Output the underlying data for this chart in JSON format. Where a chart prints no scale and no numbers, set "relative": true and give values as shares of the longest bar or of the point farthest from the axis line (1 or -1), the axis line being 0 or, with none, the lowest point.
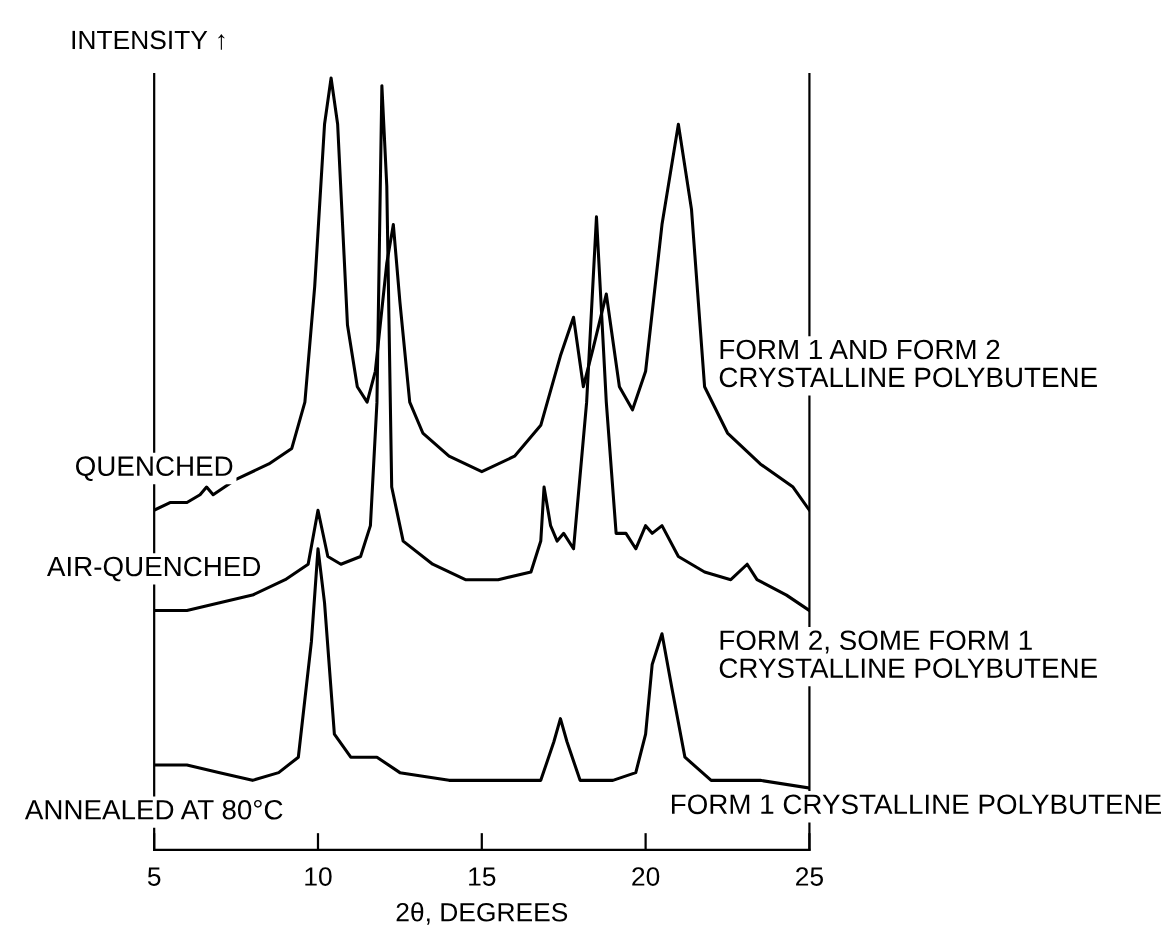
{
  "chart_data": {
    "type": "line",
    "relative": true,
    "xlabel": "2θ, DEGREES",
    "ylabel": "INTENSITY ↑",
    "xlim": [
      5,
      25
    ],
    "xticks": [
      5,
      10,
      15,
      20,
      25
    ],
    "grid": false,
    "legend": false,
    "marker": "none",
    "line_style": "solid",
    "annotations": [
      "FORM 1 AND FORM 2\nCRYSTALLINE POLYBUTENE",
      "FORM 2, SOME FORM 1\nCRYSTALLINE POLYBUTENE",
      "FORM 1 CRYSTALLINE POLYBUTENE"
    ],
    "series": [
      {
        "name": "QUENCHED",
        "color": "#000000",
        "x": [
          5,
          5.5,
          6,
          6.4,
          6.6,
          6.8,
          7.5,
          8.5,
          9.2,
          9.6,
          9.9,
          10.2,
          10.4,
          10.6,
          10.9,
          11.2,
          11.5,
          11.75,
          12.1,
          12.3,
          12.5,
          12.8,
          13.2,
          14,
          15,
          16,
          16.8,
          17.4,
          17.8,
          18.1,
          18.4,
          18.8,
          19.2,
          19.6,
          20.0,
          20.5,
          21.0,
          21.4,
          21.8,
          22.5,
          23.5,
          24.5,
          25
        ],
        "values": [
          0.44,
          0.45,
          0.45,
          0.46,
          0.47,
          0.46,
          0.48,
          0.5,
          0.52,
          0.58,
          0.73,
          0.94,
          1.0,
          0.94,
          0.68,
          0.6,
          0.58,
          0.62,
          0.76,
          0.81,
          0.71,
          0.58,
          0.54,
          0.51,
          0.49,
          0.51,
          0.55,
          0.64,
          0.69,
          0.6,
          0.65,
          0.72,
          0.6,
          0.57,
          0.62,
          0.81,
          0.94,
          0.83,
          0.6,
          0.54,
          0.5,
          0.47,
          0.44
        ]
      },
      {
        "name": "AIR-QUENCHED",
        "color": "#000000",
        "x": [
          5,
          6,
          7,
          8,
          9,
          9.7,
          10.0,
          10.3,
          10.7,
          11.3,
          11.6,
          11.8,
          11.95,
          12.1,
          12.25,
          12.6,
          13.5,
          14.5,
          15.5,
          16.5,
          16.8,
          16.9,
          17.1,
          17.3,
          17.5,
          17.8,
          18.2,
          18.5,
          18.8,
          19.1,
          19.4,
          19.7,
          20.0,
          20.2,
          20.5,
          21.0,
          21.8,
          22.6,
          23.1,
          23.4,
          24.3,
          25
        ],
        "values": [
          0.31,
          0.31,
          0.32,
          0.33,
          0.35,
          0.37,
          0.44,
          0.38,
          0.37,
          0.38,
          0.42,
          0.58,
          0.99,
          0.86,
          0.47,
          0.4,
          0.37,
          0.35,
          0.35,
          0.36,
          0.4,
          0.47,
          0.42,
          0.4,
          0.41,
          0.39,
          0.58,
          0.82,
          0.58,
          0.41,
          0.41,
          0.39,
          0.42,
          0.41,
          0.42,
          0.38,
          0.36,
          0.35,
          0.37,
          0.35,
          0.33,
          0.31
        ]
      },
      {
        "name": "ANNEALED AT 80°C",
        "color": "#000000",
        "x": [
          5,
          6,
          7,
          8,
          8.8,
          9.4,
          9.8,
          10.0,
          10.2,
          10.5,
          11,
          11.8,
          12.5,
          14,
          15.5,
          16.8,
          17.2,
          17.4,
          17.6,
          18,
          19,
          19.7,
          20.0,
          20.2,
          20.5,
          20.8,
          21.2,
          22,
          23.5,
          25
        ],
        "values": [
          0.11,
          0.11,
          0.1,
          0.09,
          0.1,
          0.12,
          0.27,
          0.39,
          0.32,
          0.15,
          0.12,
          0.12,
          0.1,
          0.09,
          0.09,
          0.09,
          0.14,
          0.17,
          0.14,
          0.09,
          0.09,
          0.1,
          0.15,
          0.24,
          0.28,
          0.21,
          0.12,
          0.09,
          0.09,
          0.08
        ]
      }
    ]
  }
}
